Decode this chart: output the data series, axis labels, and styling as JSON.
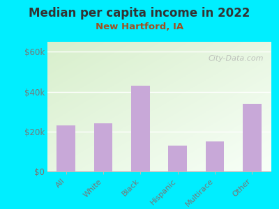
{
  "title": "Median per capita income in 2022",
  "subtitle": "New Hartford, IA",
  "categories": [
    "All",
    "White",
    "Black",
    "Hispanic",
    "Multirace",
    "Other"
  ],
  "values": [
    23000,
    24000,
    43000,
    13000,
    15000,
    34000
  ],
  "bar_color": "#c8a8d8",
  "background_outer": "#00eeff",
  "title_color": "#333333",
  "subtitle_color": "#a05020",
  "tick_label_color": "#777777",
  "yticks": [
    0,
    20000,
    40000,
    60000
  ],
  "ytick_labels": [
    "$0",
    "$20k",
    "$40k",
    "$60k"
  ],
  "ylim": [
    0,
    65000
  ],
  "watermark": "City-Data.com"
}
